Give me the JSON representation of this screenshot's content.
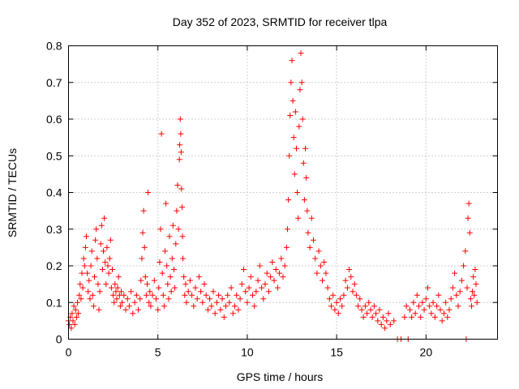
{
  "chart_data": {
    "type": "scatter",
    "title": "Day 352 of 2023, SRMTID for receiver tlpa",
    "xlabel": "GPS time / hours",
    "ylabel": "SRMTID / TECUs",
    "xlim": [
      0,
      24
    ],
    "ylim": [
      0,
      0.8
    ],
    "xticks": [
      0,
      5,
      10,
      15,
      20
    ],
    "yticks": [
      0,
      0.1,
      0.2,
      0.3,
      0.4,
      0.5,
      0.6,
      0.7,
      0.8
    ],
    "grid": true,
    "marker": "plus",
    "color": "#ff0000",
    "series": [
      {
        "name": "SRMTID",
        "points": [
          [
            0.0,
            0.05
          ],
          [
            0.05,
            0.04
          ],
          [
            0.1,
            0.06
          ],
          [
            0.15,
            0.03
          ],
          [
            0.2,
            0.07
          ],
          [
            0.25,
            0.05
          ],
          [
            0.3,
            0.09
          ],
          [
            0.35,
            0.04
          ],
          [
            0.4,
            0.08
          ],
          [
            0.45,
            0.06
          ],
          [
            0.5,
            0.1
          ],
          [
            0.55,
            0.07
          ],
          [
            0.6,
            0.12
          ],
          [
            0.65,
            0.15
          ],
          [
            0.7,
            0.11
          ],
          [
            0.75,
            0.18
          ],
          [
            0.8,
            0.14
          ],
          [
            0.85,
            0.22
          ],
          [
            0.9,
            0.2
          ],
          [
            0.95,
            0.25
          ],
          [
            1.0,
            0.28
          ],
          [
            1.05,
            0.18
          ],
          [
            1.1,
            0.13
          ],
          [
            1.15,
            0.16
          ],
          [
            1.2,
            0.11
          ],
          [
            1.25,
            0.2
          ],
          [
            1.3,
            0.24
          ],
          [
            1.35,
            0.12
          ],
          [
            1.4,
            0.09
          ],
          [
            1.45,
            0.17
          ],
          [
            1.5,
            0.27
          ],
          [
            1.55,
            0.3
          ],
          [
            1.6,
            0.22
          ],
          [
            1.65,
            0.15
          ],
          [
            1.7,
            0.08
          ],
          [
            1.75,
            0.13
          ],
          [
            1.8,
            0.26
          ],
          [
            1.85,
            0.31
          ],
          [
            1.9,
            0.19
          ],
          [
            1.95,
            0.24
          ],
          [
            2.0,
            0.33
          ],
          [
            2.05,
            0.21
          ],
          [
            2.1,
            0.15
          ],
          [
            2.15,
            0.25
          ],
          [
            2.2,
            0.2
          ],
          [
            2.25,
            0.18
          ],
          [
            2.3,
            0.22
          ],
          [
            2.35,
            0.27
          ],
          [
            2.4,
            0.14
          ],
          [
            2.45,
            0.19
          ],
          [
            2.5,
            0.12
          ],
          [
            2.55,
            0.1
          ],
          [
            2.6,
            0.15
          ],
          [
            2.65,
            0.13
          ],
          [
            2.7,
            0.11
          ],
          [
            2.75,
            0.14
          ],
          [
            2.8,
            0.17
          ],
          [
            2.85,
            0.12
          ],
          [
            2.9,
            0.09
          ],
          [
            2.95,
            0.13
          ],
          [
            3.0,
            0.1
          ],
          [
            3.1,
            0.12
          ],
          [
            3.2,
            0.08
          ],
          [
            3.3,
            0.11
          ],
          [
            3.4,
            0.09
          ],
          [
            3.5,
            0.13
          ],
          [
            3.6,
            0.07
          ],
          [
            3.7,
            0.1
          ],
          [
            3.8,
            0.12
          ],
          [
            3.9,
            0.08
          ],
          [
            4.0,
            0.11
          ],
          [
            4.05,
            0.16
          ],
          [
            4.1,
            0.22
          ],
          [
            4.15,
            0.29
          ],
          [
            4.2,
            0.35
          ],
          [
            4.25,
            0.25
          ],
          [
            4.3,
            0.17
          ],
          [
            4.35,
            0.12
          ],
          [
            4.4,
            0.15
          ],
          [
            4.45,
            0.4
          ],
          [
            4.5,
            0.1
          ],
          [
            4.55,
            0.13
          ],
          [
            4.6,
            0.09
          ],
          [
            4.7,
            0.12
          ],
          [
            4.8,
            0.16
          ],
          [
            4.9,
            0.11
          ],
          [
            5.0,
            0.08
          ],
          [
            5.05,
            0.14
          ],
          [
            5.1,
            0.21
          ],
          [
            5.15,
            0.3
          ],
          [
            5.2,
            0.56
          ],
          [
            5.25,
            0.18
          ],
          [
            5.3,
            0.12
          ],
          [
            5.35,
            0.09
          ],
          [
            5.4,
            0.24
          ],
          [
            5.45,
            0.37
          ],
          [
            5.5,
            0.2
          ],
          [
            5.55,
            0.15
          ],
          [
            5.6,
            0.11
          ],
          [
            5.65,
            0.28
          ],
          [
            5.7,
            0.17
          ],
          [
            5.75,
            0.13
          ],
          [
            5.8,
            0.22
          ],
          [
            5.85,
            0.31
          ],
          [
            5.9,
            0.19
          ],
          [
            5.95,
            0.14
          ],
          [
            6.0,
            0.26
          ],
          [
            6.05,
            0.35
          ],
          [
            6.1,
            0.42
          ],
          [
            6.15,
            0.3
          ],
          [
            6.2,
            0.49
          ],
          [
            6.22,
            0.53
          ],
          [
            6.25,
            0.6
          ],
          [
            6.28,
            0.56
          ],
          [
            6.3,
            0.51
          ],
          [
            6.32,
            0.41
          ],
          [
            6.35,
            0.36
          ],
          [
            6.38,
            0.28
          ],
          [
            6.4,
            0.22
          ],
          [
            6.45,
            0.17
          ],
          [
            6.5,
            0.12
          ],
          [
            6.55,
            0.15
          ],
          [
            6.6,
            0.1
          ],
          [
            6.7,
            0.13
          ],
          [
            6.8,
            0.16
          ],
          [
            6.9,
            0.12
          ],
          [
            7.0,
            0.09
          ],
          [
            7.1,
            0.14
          ],
          [
            7.2,
            0.11
          ],
          [
            7.3,
            0.17
          ],
          [
            7.4,
            0.13
          ],
          [
            7.5,
            0.1
          ],
          [
            7.6,
            0.15
          ],
          [
            7.7,
            0.12
          ],
          [
            7.8,
            0.08
          ],
          [
            7.9,
            0.11
          ],
          [
            8.0,
            0.09
          ],
          [
            8.1,
            0.13
          ],
          [
            8.2,
            0.07
          ],
          [
            8.3,
            0.1
          ],
          [
            8.4,
            0.12
          ],
          [
            8.5,
            0.08
          ],
          [
            8.6,
            0.11
          ],
          [
            8.7,
            0.06
          ],
          [
            8.8,
            0.09
          ],
          [
            8.9,
            0.12
          ],
          [
            9.0,
            0.1
          ],
          [
            9.1,
            0.14
          ],
          [
            9.2,
            0.07
          ],
          [
            9.3,
            0.09
          ],
          [
            9.4,
            0.12
          ],
          [
            9.5,
            0.08
          ],
          [
            9.6,
            0.11
          ],
          [
            9.7,
            0.15
          ],
          [
            9.8,
            0.19
          ],
          [
            9.9,
            0.13
          ],
          [
            10.0,
            0.1
          ],
          [
            10.1,
            0.14
          ],
          [
            10.2,
            0.17
          ],
          [
            10.3,
            0.12
          ],
          [
            10.4,
            0.09
          ],
          [
            10.5,
            0.13
          ],
          [
            10.6,
            0.16
          ],
          [
            10.7,
            0.2
          ],
          [
            10.8,
            0.14
          ],
          [
            10.9,
            0.11
          ],
          [
            11.0,
            0.15
          ],
          [
            11.1,
            0.18
          ],
          [
            11.2,
            0.13
          ],
          [
            11.3,
            0.17
          ],
          [
            11.4,
            0.21
          ],
          [
            11.5,
            0.16
          ],
          [
            11.6,
            0.19
          ],
          [
            11.7,
            0.14
          ],
          [
            11.8,
            0.18
          ],
          [
            11.9,
            0.22
          ],
          [
            12.0,
            0.17
          ],
          [
            12.1,
            0.2
          ],
          [
            12.2,
            0.25
          ],
          [
            12.25,
            0.3
          ],
          [
            12.3,
            0.38
          ],
          [
            12.35,
            0.5
          ],
          [
            12.4,
            0.61
          ],
          [
            12.45,
            0.7
          ],
          [
            12.5,
            0.76
          ],
          [
            12.55,
            0.65
          ],
          [
            12.6,
            0.55
          ],
          [
            12.65,
            0.45
          ],
          [
            12.7,
            0.62
          ],
          [
            12.75,
            0.52
          ],
          [
            12.8,
            0.4
          ],
          [
            12.85,
            0.33
          ],
          [
            12.9,
            0.58
          ],
          [
            12.95,
            0.68
          ],
          [
            13.0,
            0.78
          ],
          [
            13.05,
            0.7
          ],
          [
            13.1,
            0.6
          ],
          [
            13.15,
            0.48
          ],
          [
            13.2,
            0.38
          ],
          [
            13.25,
            0.52
          ],
          [
            13.3,
            0.44
          ],
          [
            13.35,
            0.35
          ],
          [
            13.4,
            0.29
          ],
          [
            13.5,
            0.25
          ],
          [
            13.6,
            0.33
          ],
          [
            13.7,
            0.27
          ],
          [
            13.8,
            0.22
          ],
          [
            13.9,
            0.18
          ],
          [
            14.0,
            0.24
          ],
          [
            14.1,
            0.2
          ],
          [
            14.2,
            0.16
          ],
          [
            14.3,
            0.21
          ],
          [
            14.4,
            0.18
          ],
          [
            14.5,
            0.14
          ],
          [
            14.6,
            0.11
          ],
          [
            14.7,
            0.09
          ],
          [
            14.8,
            0.12
          ],
          [
            14.9,
            0.08
          ],
          [
            15.0,
            0.1
          ],
          [
            15.1,
            0.07
          ],
          [
            15.2,
            0.11
          ],
          [
            15.3,
            0.09
          ],
          [
            15.4,
            0.12
          ],
          [
            15.5,
            0.16
          ],
          [
            15.6,
            0.14
          ],
          [
            15.7,
            0.19
          ],
          [
            15.8,
            0.17
          ],
          [
            15.9,
            0.13
          ],
          [
            16.0,
            0.15
          ],
          [
            16.1,
            0.12
          ],
          [
            16.2,
            0.09
          ],
          [
            16.3,
            0.11
          ],
          [
            16.4,
            0.08
          ],
          [
            16.5,
            0.06
          ],
          [
            16.6,
            0.09
          ],
          [
            16.7,
            0.07
          ],
          [
            16.8,
            0.1
          ],
          [
            16.9,
            0.08
          ],
          [
            17.0,
            0.06
          ],
          [
            17.1,
            0.09
          ],
          [
            17.2,
            0.07
          ],
          [
            17.3,
            0.05
          ],
          [
            17.4,
            0.08
          ],
          [
            17.5,
            0.04
          ],
          [
            17.6,
            0.06
          ],
          [
            17.7,
            0.03
          ],
          [
            17.8,
            0.05
          ],
          [
            17.9,
            0.07
          ],
          [
            18.0,
            0.04
          ],
          [
            18.2,
            0.05
          ],
          [
            18.4,
            0.0
          ],
          [
            18.6,
            0.0
          ],
          [
            18.8,
            0.06
          ],
          [
            18.9,
            0.09
          ],
          [
            19.0,
            0.0
          ],
          [
            19.1,
            0.08
          ],
          [
            19.2,
            0.06
          ],
          [
            19.3,
            0.1
          ],
          [
            19.4,
            0.07
          ],
          [
            19.5,
            0.12
          ],
          [
            19.6,
            0.09
          ],
          [
            19.7,
            0.06
          ],
          [
            19.8,
            0.1
          ],
          [
            19.9,
            0.08
          ],
          [
            20.0,
            0.11
          ],
          [
            20.1,
            0.14
          ],
          [
            20.2,
            0.09
          ],
          [
            20.3,
            0.07
          ],
          [
            20.4,
            0.1
          ],
          [
            20.5,
            0.06
          ],
          [
            20.6,
            0.09
          ],
          [
            20.7,
            0.12
          ],
          [
            20.8,
            0.08
          ],
          [
            20.9,
            0.05
          ],
          [
            21.0,
            0.07
          ],
          [
            21.1,
            0.1
          ],
          [
            21.2,
            0.06
          ],
          [
            21.3,
            0.08
          ],
          [
            21.4,
            0.11
          ],
          [
            21.5,
            0.14
          ],
          [
            21.6,
            0.18
          ],
          [
            21.7,
            0.12
          ],
          [
            21.8,
            0.09
          ],
          [
            21.9,
            0.13
          ],
          [
            22.0,
            0.16
          ],
          [
            22.1,
            0.2
          ],
          [
            22.2,
            0.24
          ],
          [
            22.25,
            0.0
          ],
          [
            22.3,
            0.14
          ],
          [
            22.35,
            0.33
          ],
          [
            22.4,
            0.37
          ],
          [
            22.45,
            0.29
          ],
          [
            22.5,
            0.11
          ],
          [
            22.55,
            0.09
          ],
          [
            22.6,
            0.13
          ],
          [
            22.65,
            0.17
          ],
          [
            22.7,
            0.12
          ],
          [
            22.75,
            0.19
          ],
          [
            22.8,
            0.15
          ],
          [
            22.85,
            0.1
          ]
        ]
      }
    ]
  }
}
